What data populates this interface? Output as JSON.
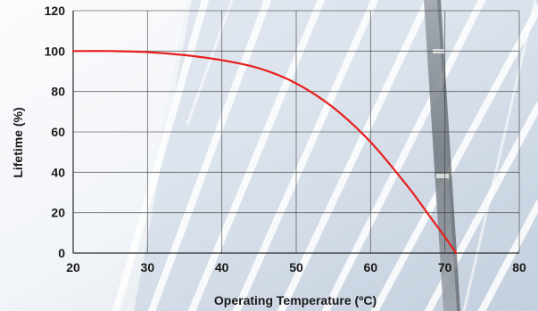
{
  "chart_data": {
    "type": "line",
    "xlabel": "Operating Temperature (ºC)",
    "ylabel": "Lifetime (%)",
    "xlim": [
      20,
      80
    ],
    "ylim": [
      0,
      120
    ],
    "x_ticks": [
      "20",
      "30",
      "40",
      "50",
      "60",
      "70",
      "80"
    ],
    "y_ticks": [
      "0",
      "20",
      "40",
      "60",
      "80",
      "100",
      "120"
    ],
    "grid": true,
    "series": [
      {
        "color": "#e8201e",
        "x": [
          20,
          25,
          30,
          35,
          40,
          45,
          50,
          55,
          60,
          65,
          68,
          70,
          71.5
        ],
        "y": [
          100,
          100,
          99.5,
          98,
          95.5,
          91.5,
          84,
          72,
          55,
          33,
          18,
          8,
          0
        ]
      }
    ]
  }
}
